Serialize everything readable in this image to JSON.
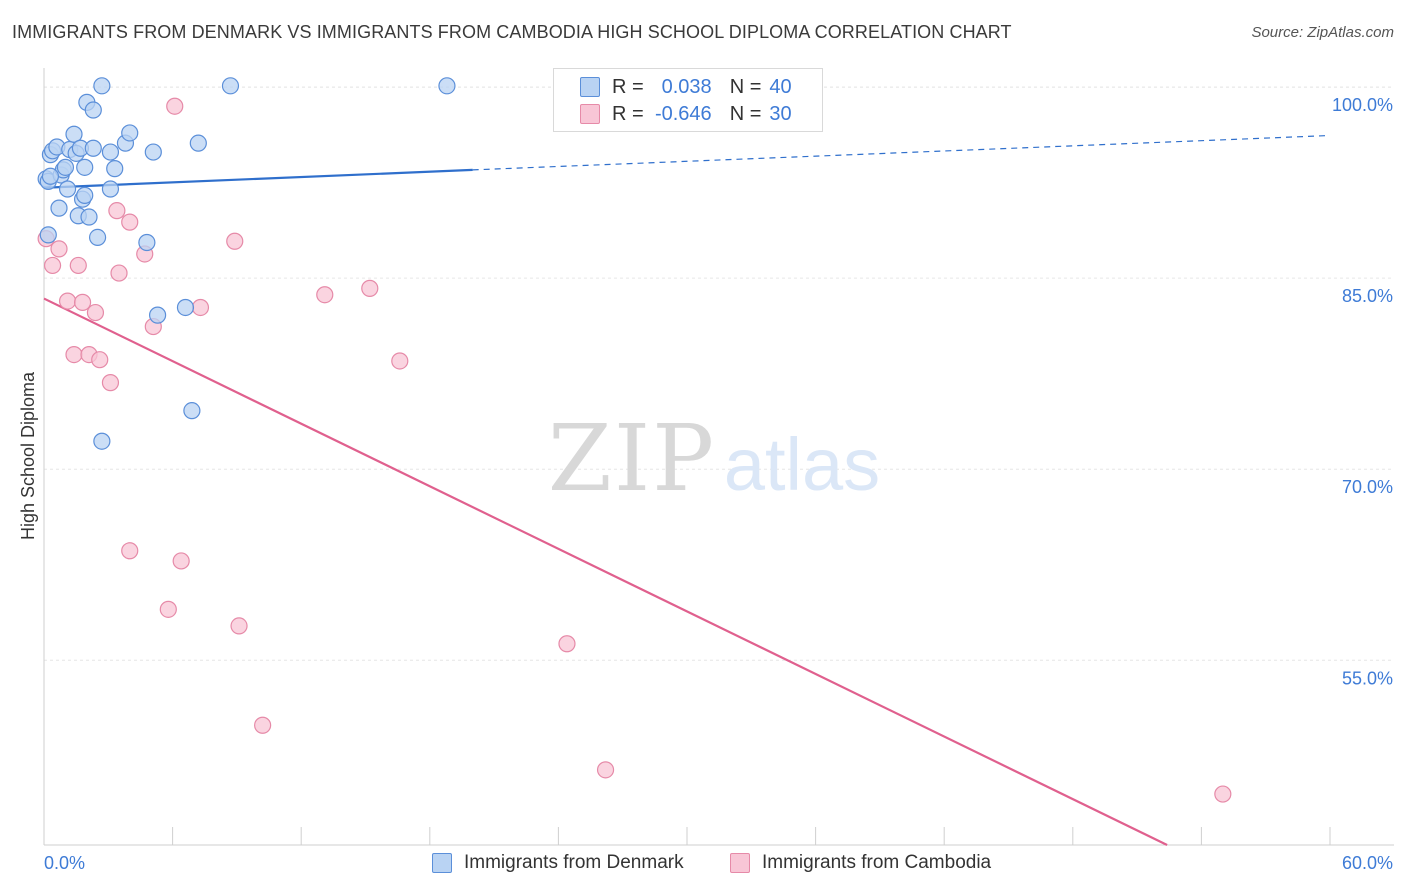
{
  "header": {
    "title": "IMMIGRANTS FROM DENMARK VS IMMIGRANTS FROM CAMBODIA HIGH SCHOOL DIPLOMA CORRELATION CHART",
    "source": "Source: ZipAtlas.com"
  },
  "watermark": {
    "zip": "ZIP",
    "atlas": "atlas"
  },
  "stats": {
    "denmark": {
      "r_label": "R =",
      "r_value": "0.038",
      "n_label": "N =",
      "n_value": "40"
    },
    "cambodia": {
      "r_label": "R =",
      "r_value": "-0.646",
      "n_label": "N =",
      "n_value": "30"
    }
  },
  "legend": {
    "denmark": "Immigrants from Denmark",
    "cambodia": "Immigrants from Cambodia"
  },
  "colors": {
    "denmark_fill": "#b9d3f3",
    "denmark_stroke": "#5b8fd9",
    "denmark_line": "#2f6fcc",
    "cambodia_fill": "#f8c6d6",
    "cambodia_stroke": "#e68aa8",
    "cambodia_line": "#e0608e",
    "axis_label": "#3e7bd6",
    "grid": "#e6e6e6"
  },
  "chart_data": {
    "type": "scatter",
    "title": "IMMIGRANTS FROM DENMARK VS IMMIGRANTS FROM CAMBODIA HIGH SCHOOL DIPLOMA CORRELATION CHART",
    "xlabel": "",
    "ylabel": "High School Diploma",
    "xlim": [
      0,
      60
    ],
    "ylim": [
      40.5,
      101.5
    ],
    "x_tick_labels": [
      "0.0%",
      "60.0%"
    ],
    "y_ticks": [
      100,
      85,
      70,
      55
    ],
    "y_tick_labels": [
      "100.0%",
      "85.0%",
      "70.0%",
      "55.0%"
    ],
    "grid": true,
    "legend_position": "bottom-center",
    "series": [
      {
        "name": "Immigrants from Denmark",
        "r": 0.038,
        "n": 40,
        "trend": {
          "x0": 0,
          "y0": 92.1,
          "x1": 20,
          "y1": 93.5,
          "dashed_to_x": 60,
          "dashed_to_y": 96.2
        },
        "points": [
          [
            0.2,
            88.4
          ],
          [
            0.1,
            92.8
          ],
          [
            0.2,
            92.6
          ],
          [
            0.3,
            94.7
          ],
          [
            0.4,
            95.0
          ],
          [
            0.6,
            95.3
          ],
          [
            0.7,
            90.5
          ],
          [
            0.8,
            93.1
          ],
          [
            0.9,
            93.5
          ],
          [
            1.0,
            93.7
          ],
          [
            1.1,
            92.0
          ],
          [
            1.2,
            95.1
          ],
          [
            1.4,
            96.3
          ],
          [
            1.5,
            94.8
          ],
          [
            1.6,
            89.9
          ],
          [
            1.7,
            95.2
          ],
          [
            1.8,
            91.2
          ],
          [
            1.9,
            91.5
          ],
          [
            1.9,
            93.7
          ],
          [
            2.0,
            98.8
          ],
          [
            2.1,
            89.8
          ],
          [
            2.3,
            95.2
          ],
          [
            2.3,
            98.2
          ],
          [
            2.5,
            88.2
          ],
          [
            2.7,
            100.1
          ],
          [
            2.7,
            72.2
          ],
          [
            3.1,
            92.0
          ],
          [
            3.1,
            94.9
          ],
          [
            3.3,
            93.6
          ],
          [
            3.8,
            95.6
          ],
          [
            4.0,
            96.4
          ],
          [
            4.8,
            87.8
          ],
          [
            5.1,
            94.9
          ],
          [
            5.3,
            82.1
          ],
          [
            6.6,
            82.7
          ],
          [
            6.9,
            74.6
          ],
          [
            7.2,
            95.6
          ],
          [
            8.7,
            100.1
          ],
          [
            18.8,
            100.1
          ],
          [
            0.3,
            93.0
          ]
        ]
      },
      {
        "name": "Immigrants from Cambodia",
        "r": -0.646,
        "n": 30,
        "trend": {
          "x0": 0,
          "y0": 83.4,
          "x1": 52.4,
          "y1": 40.5
        },
        "points": [
          [
            0.1,
            88.1
          ],
          [
            0.4,
            86.0
          ],
          [
            0.7,
            87.3
          ],
          [
            1.1,
            83.2
          ],
          [
            1.4,
            79.0
          ],
          [
            1.6,
            86.0
          ],
          [
            1.8,
            83.1
          ],
          [
            2.1,
            79.0
          ],
          [
            2.4,
            82.3
          ],
          [
            2.6,
            78.6
          ],
          [
            3.1,
            76.8
          ],
          [
            3.4,
            90.3
          ],
          [
            3.5,
            85.4
          ],
          [
            4.0,
            89.4
          ],
          [
            4.0,
            63.6
          ],
          [
            4.7,
            86.9
          ],
          [
            5.1,
            81.2
          ],
          [
            5.8,
            59.0
          ],
          [
            6.1,
            98.5
          ],
          [
            6.4,
            62.8
          ],
          [
            7.3,
            82.7
          ],
          [
            8.9,
            87.9
          ],
          [
            9.1,
            57.7
          ],
          [
            10.2,
            49.9
          ],
          [
            13.1,
            83.7
          ],
          [
            15.2,
            84.2
          ],
          [
            16.6,
            78.5
          ],
          [
            24.4,
            56.3
          ],
          [
            26.2,
            46.4
          ],
          [
            55.0,
            44.5
          ]
        ]
      }
    ]
  }
}
